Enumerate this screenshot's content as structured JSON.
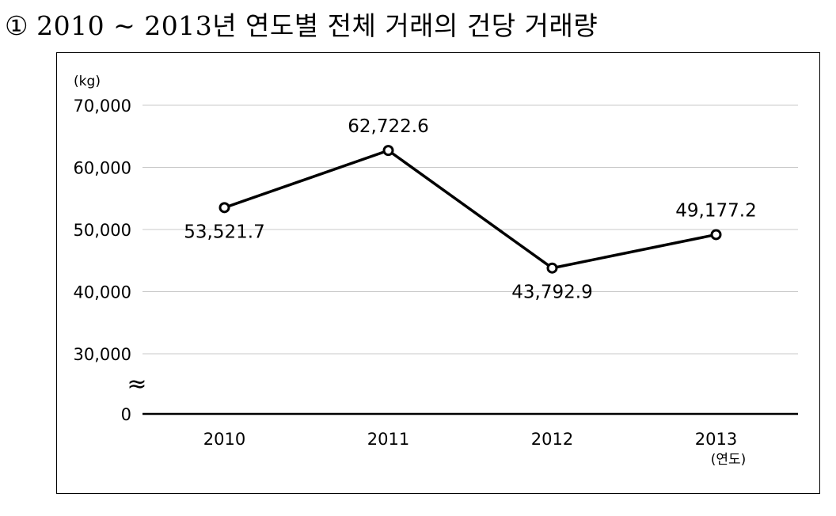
{
  "heading": {
    "number": "①",
    "text": "2010 ~ 2013년 연도별 전체 거래의 건당 거래량"
  },
  "chart_data": {
    "type": "line",
    "title": "2010 ~ 2013년 연도별 전체 거래의 건당 거래량",
    "ylabel": "(kg)",
    "xlabel": "(연도)",
    "categories": [
      "2010",
      "2011",
      "2012",
      "2013"
    ],
    "series": [
      {
        "values": [
          53521.7,
          62722.6,
          43792.9,
          49177.2
        ],
        "labels": [
          "53,521.7",
          "62,722.6",
          "43,792.9",
          "49,177.2"
        ]
      }
    ],
    "ylim": [
      30000,
      70000
    ],
    "yticks": [
      {
        "value": 70000,
        "label": "70,000"
      },
      {
        "value": 60000,
        "label": "60,000"
      },
      {
        "value": 50000,
        "label": "50,000"
      },
      {
        "value": 40000,
        "label": "40,000"
      },
      {
        "value": 30000,
        "label": "30,000"
      }
    ],
    "y_zero_label": "0",
    "axis_break_symbol": "≈",
    "grid": true,
    "colors": {
      "line": "#000000",
      "grid": "#c8c8c8",
      "marker_fill": "#ffffff"
    }
  }
}
